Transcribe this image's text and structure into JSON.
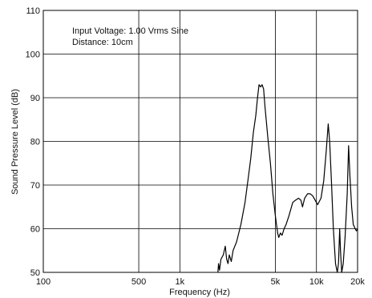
{
  "chart_data": {
    "type": "line",
    "title": "",
    "annotations": [
      "Input Voltage: 1.00 Vrms Sine",
      "Distance: 10cm"
    ],
    "xlabel": "Frequency (Hz)",
    "ylabel": "Sound Pressure Level (dB)",
    "x_scale": "log",
    "xlim": [
      100,
      20000
    ],
    "ylim": [
      50,
      110
    ],
    "x_ticks": [
      {
        "value": 100,
        "label": "100"
      },
      {
        "value": 500,
        "label": "500"
      },
      {
        "value": 1000,
        "label": "1k"
      },
      {
        "value": 5000,
        "label": "5k"
      },
      {
        "value": 10000,
        "label": "10k"
      },
      {
        "value": 20000,
        "label": "20k"
      }
    ],
    "y_ticks": [
      {
        "value": 50,
        "label": "50"
      },
      {
        "value": 60,
        "label": "60"
      },
      {
        "value": 70,
        "label": "70"
      },
      {
        "value": 80,
        "label": "80"
      },
      {
        "value": 90,
        "label": "90"
      },
      {
        "value": 100,
        "label": "100"
      },
      {
        "value": 110,
        "label": "110"
      }
    ],
    "x_gridlines": [
      500,
      1000,
      5000,
      10000
    ],
    "y_gridlines": [
      60,
      70,
      80,
      90,
      100
    ],
    "grid": true,
    "series": [
      {
        "color": "#000000",
        "points": [
          [
            1900,
            50
          ],
          [
            1920,
            52
          ],
          [
            1950,
            50.5
          ],
          [
            2000,
            53
          ],
          [
            2080,
            54
          ],
          [
            2150,
            56
          ],
          [
            2200,
            53
          ],
          [
            2250,
            52
          ],
          [
            2300,
            54
          ],
          [
            2380,
            52.5
          ],
          [
            2450,
            55
          ],
          [
            2600,
            57
          ],
          [
            2800,
            61
          ],
          [
            3000,
            66
          ],
          [
            3150,
            71
          ],
          [
            3300,
            76
          ],
          [
            3450,
            82
          ],
          [
            3600,
            86
          ],
          [
            3700,
            90
          ],
          [
            3800,
            93
          ],
          [
            3900,
            92.5
          ],
          [
            4000,
            93
          ],
          [
            4100,
            92
          ],
          [
            4200,
            88
          ],
          [
            4400,
            81
          ],
          [
            4600,
            75
          ],
          [
            4800,
            68
          ],
          [
            5000,
            63
          ],
          [
            5200,
            59
          ],
          [
            5300,
            58
          ],
          [
            5450,
            59
          ],
          [
            5600,
            58.5
          ],
          [
            5800,
            60
          ],
          [
            6000,
            61
          ],
          [
            6300,
            63
          ],
          [
            6700,
            66
          ],
          [
            7000,
            66.5
          ],
          [
            7400,
            67
          ],
          [
            7700,
            66.5
          ],
          [
            7900,
            65
          ],
          [
            8200,
            67
          ],
          [
            8600,
            68
          ],
          [
            9000,
            68
          ],
          [
            9400,
            67.5
          ],
          [
            9800,
            66.5
          ],
          [
            10200,
            65.5
          ],
          [
            10800,
            67
          ],
          [
            11300,
            71
          ],
          [
            11800,
            78
          ],
          [
            12200,
            84
          ],
          [
            12500,
            80
          ],
          [
            12900,
            70
          ],
          [
            13300,
            60
          ],
          [
            13800,
            52
          ],
          [
            14200,
            49
          ],
          [
            14500,
            52
          ],
          [
            14800,
            60
          ],
          [
            15000,
            55
          ],
          [
            15300,
            50
          ],
          [
            15700,
            52
          ],
          [
            16200,
            58
          ],
          [
            16800,
            68
          ],
          [
            17200,
            79
          ],
          [
            17600,
            72
          ],
          [
            18100,
            65
          ],
          [
            18600,
            61
          ],
          [
            19200,
            60
          ],
          [
            19600,
            59.5
          ],
          [
            20000,
            60
          ]
        ]
      }
    ]
  }
}
